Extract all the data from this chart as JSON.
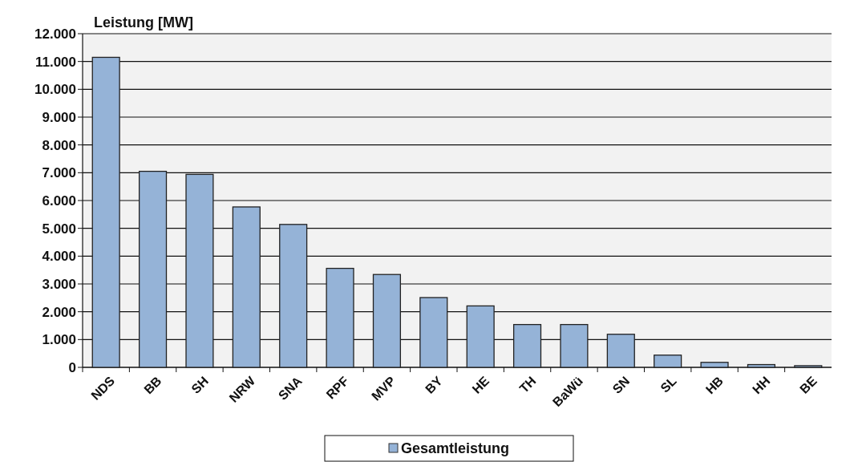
{
  "chart_data": {
    "type": "bar",
    "ylabel": "Leistung [MW]",
    "categories": [
      "NDS",
      "BB",
      "SH",
      "NRW",
      "SNA",
      "RPF",
      "MVP",
      "BY",
      "HE",
      "TH",
      "BaWü",
      "SN",
      "SL",
      "HB",
      "HH",
      "BE"
    ],
    "series": [
      {
        "name": "Gesamtleistung",
        "color": "#95b3d7",
        "values": [
          11150,
          7050,
          6940,
          5770,
          5140,
          3560,
          3340,
          2510,
          2210,
          1540,
          1540,
          1190,
          440,
          180,
          100,
          60
        ]
      }
    ],
    "ylim": [
      0,
      12000
    ],
    "yticks": [
      {
        "value": 0,
        "label": "0"
      },
      {
        "value": 1000,
        "label": "1.000"
      },
      {
        "value": 2000,
        "label": "2.000"
      },
      {
        "value": 3000,
        "label": "3.000"
      },
      {
        "value": 4000,
        "label": "4.000"
      },
      {
        "value": 5000,
        "label": "5.000"
      },
      {
        "value": 6000,
        "label": "6.000"
      },
      {
        "value": 7000,
        "label": "7.000"
      },
      {
        "value": 8000,
        "label": "8.000"
      },
      {
        "value": 9000,
        "label": "9.000"
      },
      {
        "value": 10000,
        "label": "10.000"
      },
      {
        "value": 11000,
        "label": "11.000"
      },
      {
        "value": 12000,
        "label": "12.000"
      }
    ],
    "grid": "y",
    "legend": "bottom"
  }
}
